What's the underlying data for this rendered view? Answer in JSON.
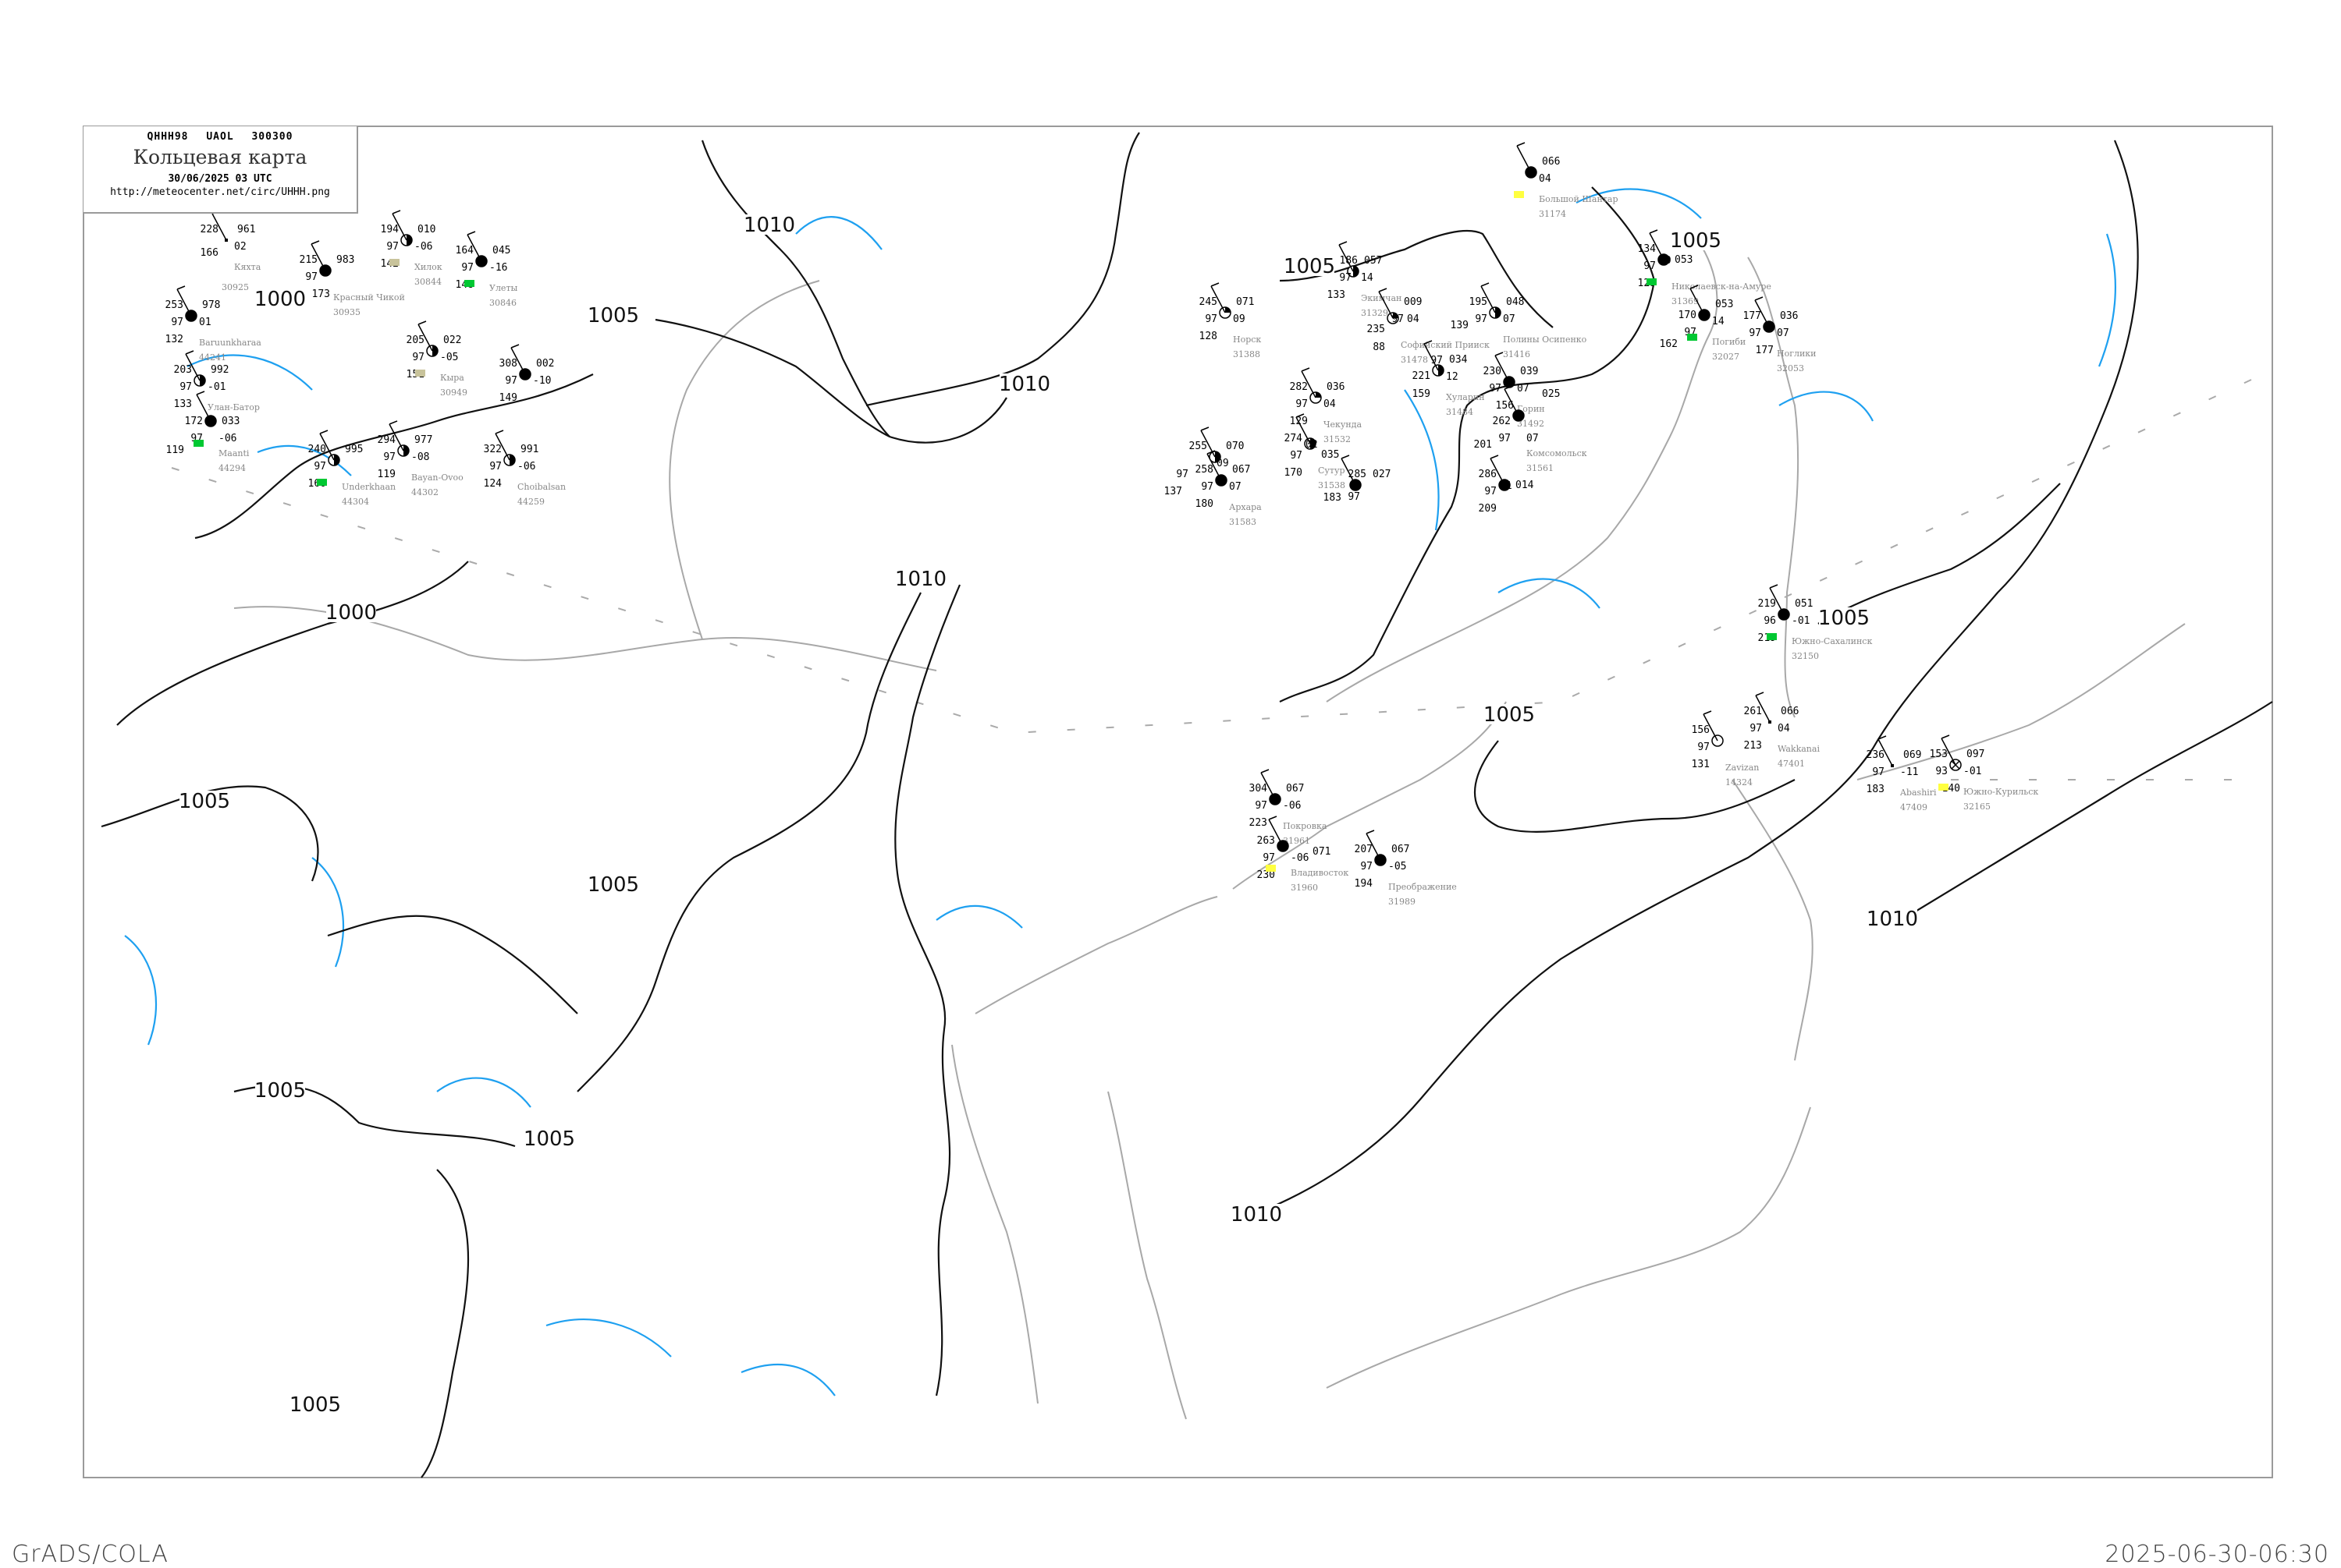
{
  "header": {
    "code": "QHHH98 UAOL 300300",
    "title": "Кольцевая карта",
    "datetime": "30/06/2025 03 UTC",
    "url": "http://meteocenter.net/circ/UHHH.png"
  },
  "footer": {
    "software": "GrADS/COLA",
    "timestamp": "2025-06-30-06:30"
  },
  "colors": {
    "isobar": "#111111",
    "isotherm": "#1ea0f0",
    "coast": "#a8a8a8",
    "station_name": "#888888",
    "precip_green": "#00c832",
    "precip_yellow": "#ffff40",
    "precip_khaki": "#c8c39b"
  },
  "isobar_labels": [
    "1000",
    "1000",
    "1005",
    "1005",
    "1005",
    "1005",
    "1005",
    "1005",
    "1005",
    "1005",
    "1005",
    "1005",
    "1010",
    "1010",
    "1010",
    "1010",
    "1010"
  ],
  "stations": [
    {
      "name": "Николаевск-на-Амуре",
      "id": "31369",
      "tl": "134",
      "ml": "97",
      "bl": "129",
      "tr": "053",
      "mr": "10",
      "cloud": "full",
      "box": "green"
    },
    {
      "name": "Погиби",
      "id": "32027",
      "tl": "170",
      "ml": "97",
      "bl": "162",
      "tr": "053",
      "mr": "14",
      "cloud": "full",
      "box": "green"
    },
    {
      "name": "Ноглики",
      "id": "32053",
      "tl": "177",
      "ml": "97",
      "bl": "177",
      "tr": "036",
      "mr": "07",
      "cloud": "full"
    },
    {
      "name": "Большой Шантар",
      "id": "31174",
      "tl": "",
      "ml": "",
      "bl": "",
      "tr": "066",
      "mr": "04",
      "cloud": "full",
      "box": "yellow"
    },
    {
      "name": "Экимчан",
      "id": "31329",
      "tl": "186",
      "ml": "97",
      "bl": "133",
      "tr": "057",
      "mr": "14",
      "cloud": "half"
    },
    {
      "name": "Норск",
      "id": "31388",
      "tl": "245",
      "ml": "97",
      "bl": "128",
      "tr": "071",
      "mr": "09",
      "cloud": "quarter"
    },
    {
      "name": "Софийский Прииск",
      "id": "31478",
      "tl": "235",
      "ml": "97",
      "bl": "88",
      "tr": "009",
      "mr": "04",
      "cloud": "quarter"
    },
    {
      "name": "Полины Осипенко",
      "id": "31416",
      "tl": "195",
      "ml": "97",
      "bl": "139",
      "tr": "048",
      "mr": "07",
      "cloud": "half"
    },
    {
      "name": "Хуларин",
      "id": "31484",
      "tl": "221",
      "ml": "97",
      "bl": "159",
      "tr": "034",
      "mr": "12",
      "cloud": "half"
    },
    {
      "name": "Чекунда",
      "id": "31532",
      "tl": "282",
      "ml": "97",
      "bl": "129",
      "tr": "036",
      "mr": "04",
      "cloud": "quarter"
    },
    {
      "name": "Сутур",
      "id": "31538",
      "tl": "274",
      "ml": "97",
      "bl": "170",
      "tr": "035",
      "mr": "02",
      "cloud": "half"
    },
    {
      "name": "Горин",
      "id": "31492",
      "tl": "230",
      "ml": "97",
      "bl": "156",
      "tr": "039",
      "mr": "07",
      "cloud": "full"
    },
    {
      "name": "Комсомольск",
      "id": "31561",
      "tl": "262",
      "ml": "97",
      "bl": "201",
      "tr": "025",
      "mr": "07",
      "cloud": "full"
    },
    {
      "name": "Архара",
      "id": "31583",
      "tl": "258",
      "ml": "97",
      "bl": "180",
      "tr": "067",
      "mr": "07",
      "cloud": "full"
    },
    {
      "name": "",
      "id": "",
      "tl": "255",
      "ml": "97",
      "bl": "137",
      "tr": "070",
      "mr": "09",
      "cloud": "half"
    },
    {
      "name": "",
      "id": "",
      "tl": "285",
      "ml": "97",
      "bl": "183",
      "tr": "027",
      "mr": "",
      "cloud": "full"
    },
    {
      "name": "",
      "id": "",
      "tl": "286",
      "ml": "97",
      "bl": "209",
      "tr": "014",
      "mr": "01",
      "cloud": "full"
    },
    {
      "name": "Покровка",
      "id": "31961",
      "tl": "304",
      "ml": "97",
      "bl": "223",
      "tr": "067",
      "mr": "-06",
      "cloud": "full"
    },
    {
      "name": "Владивосток",
      "id": "31960",
      "tl": "263",
      "ml": "97",
      "bl": "230",
      "tr": "071",
      "mr": "-06",
      "cloud": "full",
      "box": "yellow"
    },
    {
      "name": "Преображение",
      "id": "31989",
      "tl": "207",
      "ml": "97",
      "bl": "194",
      "tr": "067",
      "mr": "-05",
      "cloud": "full"
    },
    {
      "name": "Южно-Сахалинск",
      "id": "32150",
      "tl": "219",
      "ml": "96",
      "bl": "219",
      "tr": "051",
      "mr": "-01",
      "cloud": "full",
      "box": "green"
    },
    {
      "name": "Zavizan",
      "id": "14324",
      "tl": "156",
      "ml": "97",
      "bl": "131",
      "tr": "",
      "mr": "",
      "cloud": "empty"
    },
    {
      "name": "Wakkanai",
      "id": "47401",
      "tl": "261",
      "ml": "97",
      "bl": "213",
      "tr": "066",
      "mr": "04",
      "cloud": "none"
    },
    {
      "name": "Abashiri",
      "id": "47409",
      "tl": "236",
      "ml": "97",
      "bl": "183",
      "tr": "069",
      "mr": "-11",
      "cloud": "none"
    },
    {
      "name": "Южно-Курильск",
      "id": "32165",
      "tl": "153",
      "ml": "93",
      "bl": "140",
      "tr": "097",
      "mr": "-01",
      "cloud": "cross",
      "box": "yellow"
    },
    {
      "name": "Кяхта",
      "id": "30925",
      "tl": "228",
      "ml": "",
      "bl": "166",
      "tr": "961",
      "mr": "02",
      "cloud": "none"
    },
    {
      "name": "Красный Чикой",
      "id": "30935",
      "tl": "215",
      "ml": "97",
      "bl": "173",
      "tr": "983",
      "mr": "",
      "cloud": "full"
    },
    {
      "name": "Хилок",
      "id": "30844",
      "tl": "194",
      "ml": "97",
      "bl": "142",
      "tr": "010",
      "mr": "-06",
      "cloud": "half",
      "box": "khaki"
    },
    {
      "name": "Улеты",
      "id": "30846",
      "tl": "164",
      "ml": "97",
      "bl": "148",
      "tr": "045",
      "mr": "-16",
      "cloud": "full",
      "box": "green"
    },
    {
      "name": "Baruunkharaa",
      "id": "44241",
      "tl": "253",
      "ml": "97",
      "bl": "132",
      "tr": "978",
      "mr": "01",
      "cloud": "full"
    },
    {
      "name": "Кыра",
      "id": "30949",
      "tl": "205",
      "ml": "97",
      "bl": "151",
      "tr": "022",
      "mr": "-05",
      "cloud": "half",
      "box": "khaki"
    },
    {
      "name": "Улан-Батор",
      "id": "",
      "tl": "203",
      "ml": "97",
      "bl": "133",
      "tr": "992",
      "mr": "-01",
      "cloud": "half"
    },
    {
      "name": "Maanti",
      "id": "44294",
      "tl": "172",
      "ml": "97",
      "bl": "119",
      "tr": "033",
      "mr": "-06",
      "cloud": "full",
      "box": "green"
    },
    {
      "name": "Underkhaan",
      "id": "44304",
      "tl": "240",
      "ml": "97",
      "bl": "160",
      "tr": "995",
      "mr": "",
      "cloud": "half",
      "box": "green"
    },
    {
      "name": "Bayan-Ovoo",
      "id": "44302",
      "tl": "294",
      "ml": "97",
      "bl": "119",
      "tr": "977",
      "mr": "-08",
      "cloud": "half"
    },
    {
      "name": "Choibalsan",
      "id": "44259",
      "tl": "322",
      "ml": "97",
      "bl": "124",
      "tr": "991",
      "mr": "-06",
      "cloud": "half"
    },
    {
      "name": "",
      "id": "",
      "tl": "308",
      "ml": "97",
      "bl": "149",
      "tr": "002",
      "mr": "-10",
      "cloud": "full"
    }
  ]
}
